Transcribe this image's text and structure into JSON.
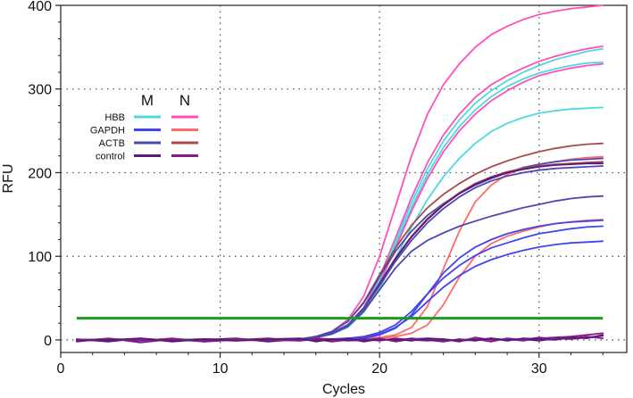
{
  "chart_data": {
    "type": "line",
    "title": "",
    "xlabel": "Cycles",
    "ylabel": "RFU",
    "xlim": [
      0,
      35.5
    ],
    "ylim": [
      -15,
      400
    ],
    "xticks": [
      0,
      10,
      20,
      30
    ],
    "yticks": [
      0,
      100,
      200,
      300,
      400
    ],
    "grid": "dotted",
    "threshold": {
      "value": 26,
      "color": "#1f9a1f"
    },
    "legend": {
      "placement": "top-left",
      "column_headers": [
        "M",
        "N"
      ],
      "rows": [
        {
          "label": "HBB",
          "colors": [
            "#4fd8df",
            "#ff4fb8"
          ]
        },
        {
          "label": "GAPDH",
          "colors": [
            "#4444ee",
            "#ff6a6a"
          ]
        },
        {
          "label": "ACTB",
          "colors": [
            "#4a4ab0",
            "#a84a4a"
          ]
        },
        {
          "label": "control",
          "colors": [
            "#5a1a7a",
            "#8a1a8a"
          ]
        }
      ]
    },
    "x": [
      1,
      3,
      5,
      7,
      9,
      11,
      13,
      15,
      16,
      17,
      18,
      19,
      20,
      21,
      22,
      23,
      24,
      25,
      26,
      27,
      28,
      29,
      30,
      31,
      32,
      33,
      34
    ],
    "series": [
      {
        "color": "#ff4fb8",
        "values": [
          0,
          1,
          0,
          -1,
          1,
          0,
          0,
          1,
          4,
          10,
          24,
          52,
          100,
          160,
          220,
          270,
          305,
          330,
          350,
          365,
          375,
          383,
          389,
          393,
          396,
          398,
          400
        ]
      },
      {
        "color": "#ff4fb8",
        "values": [
          0,
          0,
          1,
          0,
          0,
          -1,
          0,
          1,
          3,
          7,
          17,
          38,
          75,
          122,
          170,
          212,
          245,
          270,
          290,
          305,
          316,
          325,
          333,
          339,
          344,
          348,
          351
        ]
      },
      {
        "color": "#4fd8df",
        "values": [
          0,
          1,
          0,
          0,
          -1,
          0,
          1,
          0,
          3,
          7,
          16,
          36,
          72,
          118,
          164,
          205,
          238,
          263,
          283,
          298,
          310,
          320,
          328,
          335,
          340,
          345,
          348
        ]
      },
      {
        "color": "#4fd8df",
        "values": [
          0,
          0,
          0,
          1,
          0,
          0,
          0,
          1,
          3,
          7,
          16,
          36,
          70,
          114,
          158,
          198,
          230,
          255,
          275,
          291,
          303,
          312,
          319,
          324,
          328,
          331,
          332
        ]
      },
      {
        "color": "#ff4fb8",
        "values": [
          0,
          1,
          0,
          0,
          0,
          1,
          0,
          0,
          3,
          7,
          16,
          35,
          68,
          110,
          154,
          193,
          225,
          250,
          270,
          286,
          298,
          308,
          316,
          321,
          325,
          328,
          330
        ]
      },
      {
        "color": "#4fd8df",
        "values": [
          0,
          0,
          1,
          0,
          0,
          0,
          0,
          1,
          3,
          7,
          15,
          33,
          62,
          98,
          135,
          168,
          195,
          217,
          235,
          249,
          259,
          266,
          271,
          274,
          276,
          277,
          278
        ]
      },
      {
        "color": "#a84a4a",
        "values": [
          0,
          0,
          0,
          0,
          1,
          0,
          0,
          1,
          4,
          10,
          22,
          45,
          78,
          110,
          137,
          158,
          174,
          187,
          198,
          207,
          214,
          220,
          225,
          229,
          232,
          234,
          235
        ]
      },
      {
        "color": "#ff6a6a",
        "values": [
          0,
          1,
          0,
          0,
          0,
          0,
          -1,
          0,
          0,
          0,
          1,
          2,
          3,
          6,
          15,
          40,
          85,
          130,
          165,
          185,
          198,
          205,
          210,
          213,
          216,
          218,
          219
        ]
      },
      {
        "color": "#4a4ab0",
        "values": [
          0,
          0,
          0,
          0,
          1,
          0,
          0,
          1,
          4,
          10,
          22,
          44,
          76,
          106,
          130,
          149,
          163,
          175,
          185,
          193,
          200,
          206,
          210,
          213,
          215,
          216,
          217
        ]
      },
      {
        "color": "#a84a4a",
        "values": [
          0,
          0,
          0,
          1,
          0,
          0,
          0,
          1,
          3,
          8,
          18,
          38,
          68,
          98,
          124,
          145,
          162,
          176,
          187,
          195,
          201,
          205,
          208,
          210,
          211,
          212,
          213
        ]
      },
      {
        "color": "#5a1a7a",
        "values": [
          0,
          0,
          1,
          0,
          0,
          0,
          0,
          1,
          3,
          8,
          18,
          38,
          67,
          97,
          123,
          144,
          161,
          175,
          186,
          194,
          200,
          204,
          207,
          209,
          210,
          211,
          211
        ]
      },
      {
        "color": "#4a4ab0",
        "values": [
          0,
          0,
          0,
          0,
          0,
          1,
          0,
          1,
          3,
          8,
          18,
          37,
          65,
          94,
          119,
          140,
          157,
          171,
          182,
          190,
          196,
          200,
          203,
          205,
          206,
          207,
          208
        ]
      },
      {
        "color": "#4a4ab0",
        "values": [
          0,
          1,
          0,
          0,
          0,
          0,
          0,
          1,
          3,
          7,
          16,
          34,
          60,
          86,
          106,
          119,
          128,
          136,
          142,
          148,
          153,
          158,
          162,
          166,
          169,
          171,
          172
        ]
      },
      {
        "color": "#ff6a6a",
        "values": [
          0,
          0,
          0,
          0,
          0,
          1,
          0,
          0,
          0,
          0,
          1,
          1,
          2,
          4,
          8,
          18,
          42,
          75,
          100,
          115,
          124,
          130,
          135,
          139,
          141,
          143,
          144
        ]
      },
      {
        "color": "#4444ee",
        "values": [
          0,
          0,
          1,
          0,
          0,
          0,
          0,
          0,
          0,
          1,
          1,
          2,
          6,
          14,
          30,
          55,
          80,
          98,
          111,
          120,
          127,
          132,
          136,
          139,
          141,
          142,
          143
        ]
      },
      {
        "color": "#4444ee",
        "values": [
          0,
          0,
          0,
          0,
          1,
          0,
          0,
          0,
          1,
          1,
          2,
          4,
          9,
          18,
          34,
          55,
          74,
          89,
          101,
          110,
          116,
          122,
          127,
          130,
          133,
          135,
          136
        ]
      },
      {
        "color": "#4444ee",
        "values": [
          0,
          1,
          0,
          0,
          0,
          0,
          0,
          0,
          0,
          1,
          2,
          3,
          7,
          15,
          28,
          46,
          63,
          77,
          88,
          96,
          102,
          107,
          111,
          114,
          116,
          117,
          118
        ]
      },
      {
        "color": "#8a1a8a",
        "values": [
          -2,
          2,
          -3,
          1,
          -2,
          0,
          2,
          -1,
          1,
          -2,
          0,
          1,
          -1,
          2,
          0,
          -1,
          1,
          -2,
          3,
          0,
          1,
          -1,
          2,
          3,
          4,
          6,
          8
        ]
      },
      {
        "color": "#5a1a7a",
        "values": [
          1,
          -2,
          2,
          -1,
          0,
          2,
          -2,
          1,
          -1,
          0,
          2,
          -2,
          1,
          -1,
          2,
          0,
          -2,
          1,
          -1,
          2,
          0,
          1,
          -1,
          2,
          1,
          3,
          5
        ]
      },
      {
        "color": "#8a1a8a",
        "values": [
          0,
          1,
          -1,
          2,
          -2,
          1,
          0,
          -1,
          2,
          1,
          -1,
          0,
          2,
          -2,
          1,
          2,
          -1,
          0,
          1,
          -2,
          2,
          0,
          3,
          1,
          2,
          4,
          2
        ]
      },
      {
        "color": "#5a1a7a",
        "values": [
          -1,
          0,
          2,
          -2,
          1,
          -1,
          1,
          2,
          -2,
          1,
          0,
          -1,
          0,
          1,
          -1,
          2,
          1,
          -1,
          0,
          2,
          -1,
          2,
          1,
          0,
          3,
          2,
          6
        ]
      }
    ]
  }
}
